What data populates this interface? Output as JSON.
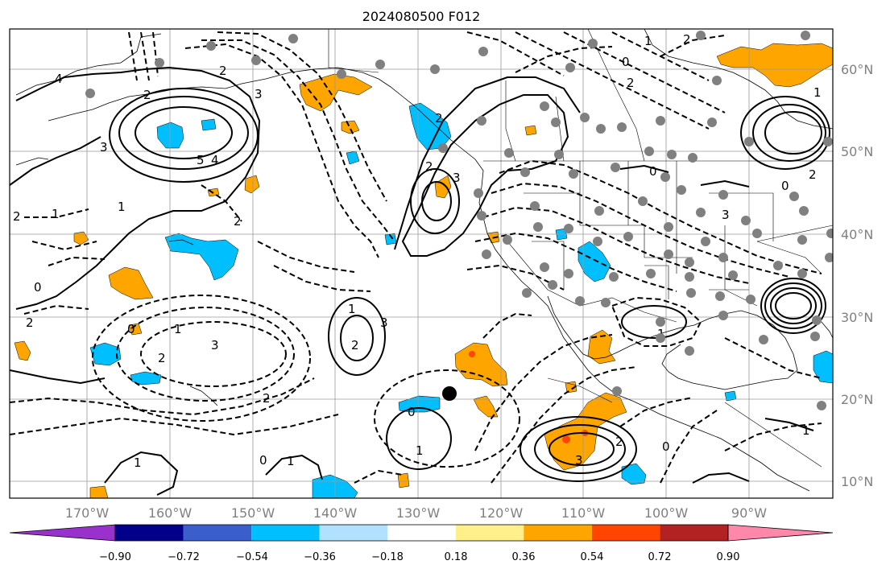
{
  "title": "2024080500 F012",
  "lon_ticks": [
    "170°W",
    "160°W",
    "150°W",
    "140°W",
    "130°W",
    "120°W",
    "110°W",
    "100°W",
    "90°W"
  ],
  "lat_ticks": [
    "60°N",
    "50°N",
    "40°N",
    "30°N",
    "20°N",
    "10°N"
  ],
  "colorbar": {
    "labels": [
      "−0.90",
      "−0.72",
      "−0.54",
      "−0.36",
      "−0.18",
      "0.18",
      "0.36",
      "0.54",
      "0.72",
      "0.90"
    ],
    "colors": [
      "#9932cc",
      "#00008b",
      "#3a5fcd",
      "#00bfff",
      "#b0e2ff",
      "#ffffff",
      "#fff08a",
      "#ffa500",
      "#ff4500",
      "#b22222",
      "#ff88aa"
    ]
  },
  "contour_labels": [
    "4",
    "2",
    "3",
    "1",
    "2",
    "5",
    "4",
    "3",
    "2",
    "1",
    "0",
    "2",
    "3",
    "2",
    "1",
    "0",
    "2",
    "2",
    "3",
    "2",
    "1",
    "2",
    "0",
    "1",
    "0",
    "3",
    "2",
    "1",
    "0",
    "1",
    "0",
    "2",
    "3",
    "1",
    "0",
    "1",
    "2",
    "1",
    "2",
    "3",
    "0",
    "1",
    "2"
  ],
  "colors": {
    "warm_fill": "#ffa500",
    "cold_fill": "#00bfff",
    "station_dot": "#808080",
    "marker": "#000000"
  }
}
